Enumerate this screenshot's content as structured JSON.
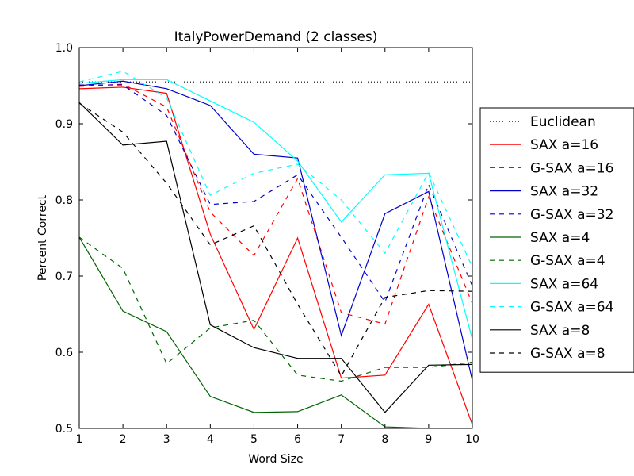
{
  "chart_data": {
    "type": "line",
    "title": "ItalyPowerDemand (2 classes)",
    "xlabel": "Word Size",
    "ylabel": "Percent Correct",
    "xlim": [
      1,
      10
    ],
    "ylim": [
      0.5,
      1.0
    ],
    "x": [
      1,
      2,
      3,
      4,
      5,
      6,
      7,
      8,
      9,
      10
    ],
    "xticks": [
      "1",
      "2",
      "3",
      "4",
      "5",
      "6",
      "7",
      "8",
      "9",
      "10"
    ],
    "yticks": [
      "0.5",
      "0.6",
      "0.7",
      "0.8",
      "0.9",
      "1.0"
    ],
    "grid": false,
    "legend_position": "right, outside",
    "series": [
      {
        "name": "Euclidean",
        "color": "#000000",
        "style": "dotted",
        "values": [
          0.955,
          0.955,
          0.955,
          0.955,
          0.955,
          0.955,
          0.955,
          0.955,
          0.955,
          0.955
        ]
      },
      {
        "name": "SAX a=16",
        "color": "#ff0000",
        "style": "solid",
        "values": [
          0.946,
          0.948,
          0.94,
          0.755,
          0.63,
          0.75,
          0.566,
          0.57,
          0.663,
          0.505
        ]
      },
      {
        "name": "G-SAX a=16",
        "color": "#ff0000",
        "style": "dashed",
        "values": [
          0.949,
          0.952,
          0.922,
          0.784,
          0.727,
          0.828,
          0.652,
          0.637,
          0.804,
          0.664
        ]
      },
      {
        "name": "SAX a=32",
        "color": "#0000cc",
        "style": "solid",
        "values": [
          0.95,
          0.956,
          0.946,
          0.924,
          0.86,
          0.855,
          0.622,
          0.782,
          0.811,
          0.563
        ]
      },
      {
        "name": "G-SAX a=32",
        "color": "#0000cc",
        "style": "dashed",
        "values": [
          0.951,
          0.951,
          0.911,
          0.794,
          0.798,
          0.833,
          0.751,
          0.666,
          0.82,
          0.687
        ]
      },
      {
        "name": "SAX a=4",
        "color": "#006400",
        "style": "solid",
        "values": [
          0.751,
          0.654,
          0.627,
          0.542,
          0.521,
          0.522,
          0.544,
          0.502,
          0.5,
          0.5
        ]
      },
      {
        "name": "G-SAX a=4",
        "color": "#006400",
        "style": "dashed",
        "values": [
          0.751,
          0.71,
          0.585,
          0.632,
          0.642,
          0.57,
          0.562,
          0.58,
          0.58,
          0.587
        ]
      },
      {
        "name": "SAX a=64",
        "color": "#00ffff",
        "style": "solid",
        "values": [
          0.953,
          0.958,
          0.958,
          0.93,
          0.902,
          0.851,
          0.771,
          0.833,
          0.835,
          0.617
        ]
      },
      {
        "name": "G-SAX a=64",
        "color": "#00ffff",
        "style": "dashed",
        "values": [
          0.955,
          0.969,
          0.934,
          0.806,
          0.835,
          0.847,
          0.8,
          0.73,
          0.836,
          0.712
        ]
      },
      {
        "name": "SAX a=8",
        "color": "#000000",
        "style": "solid",
        "values": [
          0.928,
          0.872,
          0.877,
          0.636,
          0.606,
          0.592,
          0.592,
          0.521,
          0.583,
          0.584
        ]
      },
      {
        "name": "G-SAX a=8",
        "color": "#000000",
        "style": "dashed",
        "values": [
          0.927,
          0.889,
          0.822,
          0.741,
          0.766,
          0.663,
          0.569,
          0.672,
          0.681,
          0.68
        ]
      }
    ]
  }
}
